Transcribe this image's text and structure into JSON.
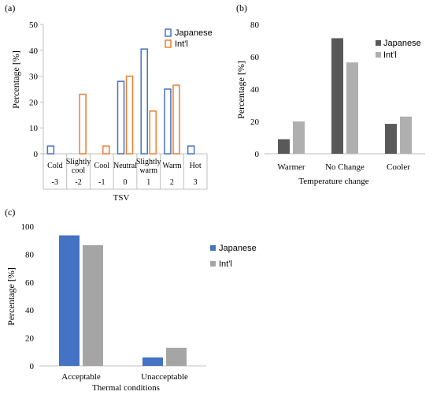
{
  "chart_data": [
    {
      "panel": "(a)",
      "type": "bar",
      "title": "",
      "xlabel": "TSV",
      "ylabel": "Percentage [%]",
      "ylim": [
        0,
        50
      ],
      "yticks": [
        0,
        10,
        20,
        30,
        40,
        50
      ],
      "categories": [
        "Cold",
        "Slightly cool",
        "Cool",
        "Neutral",
        "Slightly warm",
        "Warm",
        "Hot"
      ],
      "tsv_values": [
        "-3",
        "-2",
        "-1",
        "0",
        "1",
        "2",
        "3"
      ],
      "series": [
        {
          "name": "Japanese",
          "color": "#4472C4",
          "values": [
            3,
            0,
            0,
            28,
            40.5,
            25,
            3
          ]
        },
        {
          "name": "Int'l",
          "color": "#ED7D31",
          "values": [
            0,
            23,
            3,
            30,
            16.5,
            26.5,
            0
          ]
        }
      ],
      "style": "outlined bars",
      "legend": "top-right",
      "grid": false
    },
    {
      "panel": "(b)",
      "type": "bar",
      "title": "",
      "xlabel": "Temperature change",
      "ylabel": "Percentage [%]",
      "ylim": [
        0,
        80
      ],
      "yticks": [
        0,
        20,
        40,
        60,
        80
      ],
      "categories": [
        "Warmer",
        "No Change",
        "Cooler"
      ],
      "series": [
        {
          "name": "Japanese",
          "color": "#595959",
          "values": [
            9,
            71.5,
            18.5
          ]
        },
        {
          "name": "Int'l",
          "color": "#AFAFAF",
          "values": [
            20,
            56.5,
            23
          ]
        }
      ],
      "legend": "top-right",
      "grid": false
    },
    {
      "panel": "(c)",
      "type": "bar",
      "title": "",
      "xlabel": "Thermal conditions",
      "ylabel": "Percentage [%]",
      "ylim": [
        0,
        100
      ],
      "yticks": [
        0,
        20,
        40,
        60,
        80,
        100
      ],
      "categories": [
        "Acceptable",
        "Unacceptable"
      ],
      "series": [
        {
          "name": "Japanese",
          "color": "#4472C4",
          "values": [
            93.5,
            6
          ]
        },
        {
          "name": "Int'l",
          "color": "#A5A5A5",
          "values": [
            86.5,
            13
          ]
        }
      ],
      "legend": "right",
      "grid": false
    }
  ]
}
